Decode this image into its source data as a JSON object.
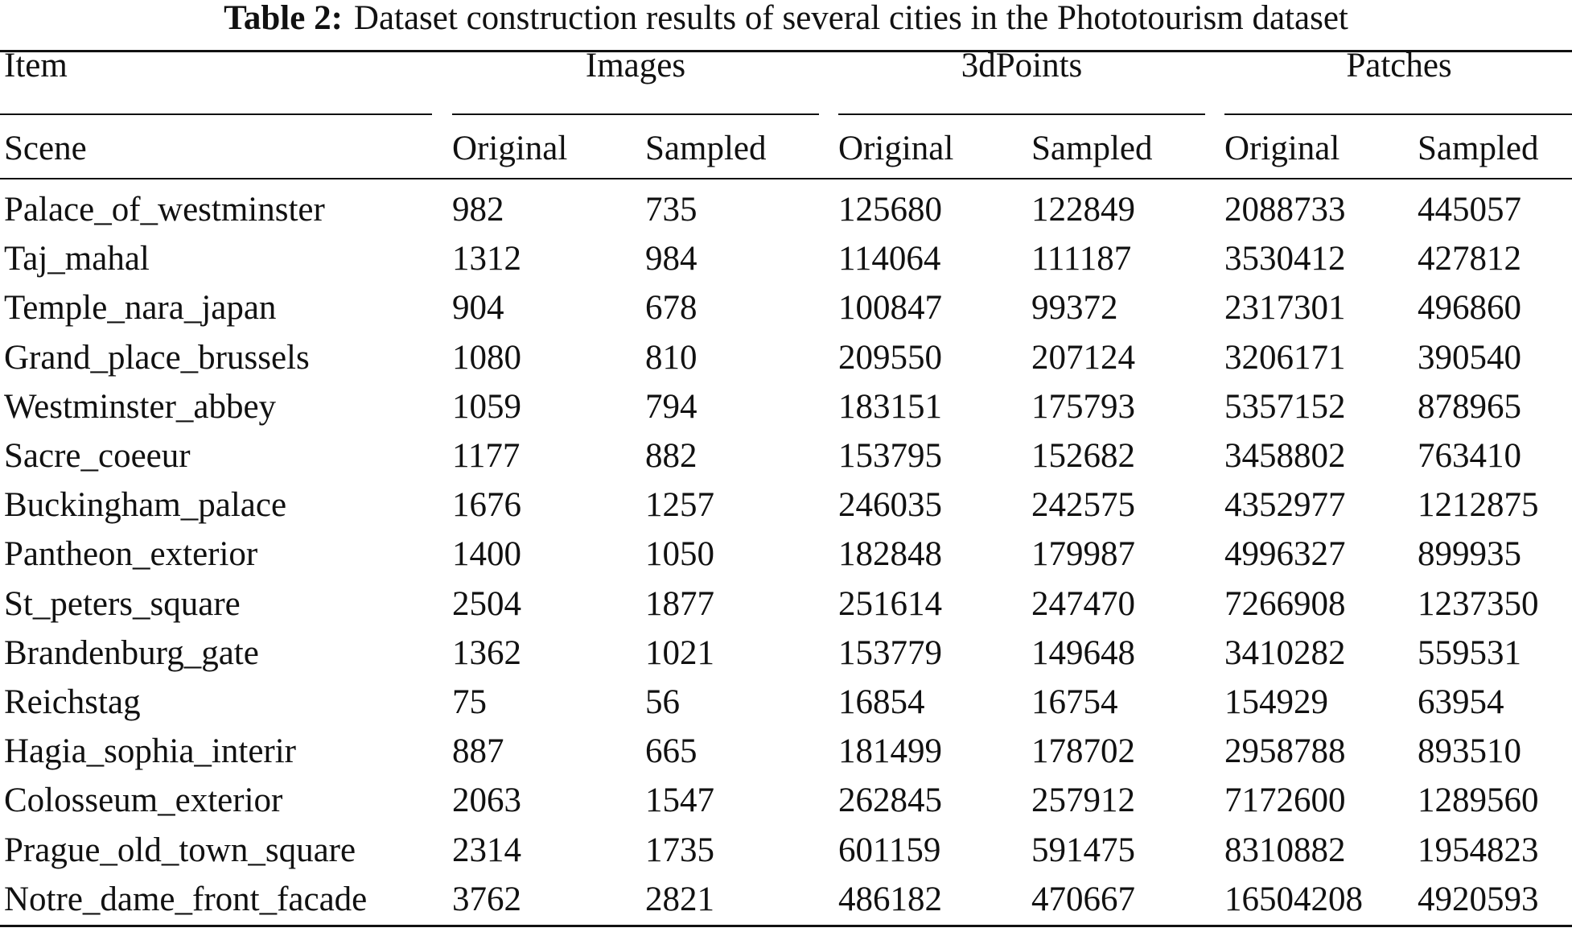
{
  "caption": {
    "label": "Table 2:",
    "text": "Dataset construction results of several cities in the Phototourism dataset"
  },
  "header": {
    "item": "Item",
    "scene": "Scene",
    "groups": [
      "Images",
      "3dPoints",
      "Patches"
    ],
    "subcolumns": [
      "Original",
      "Sampled",
      "Original",
      "Sampled",
      "Original",
      "Sampled"
    ]
  },
  "rows": [
    [
      "Palace_of_westminster",
      "982",
      "735",
      "125680",
      "122849",
      "2088733",
      "445057"
    ],
    [
      "Taj_mahal",
      "1312",
      "984",
      "114064",
      "111187",
      "3530412",
      "427812"
    ],
    [
      "Temple_nara_japan",
      "904",
      "678",
      "100847",
      "99372",
      "2317301",
      "496860"
    ],
    [
      "Grand_place_brussels",
      "1080",
      "810",
      "209550",
      "207124",
      "3206171",
      "390540"
    ],
    [
      "Westminster_abbey",
      "1059",
      "794",
      "183151",
      "175793",
      "5357152",
      "878965"
    ],
    [
      "Sacre_coeeur",
      "1177",
      "882",
      "153795",
      "152682",
      "3458802",
      "763410"
    ],
    [
      "Buckingham_palace",
      "1676",
      "1257",
      "246035",
      "242575",
      "4352977",
      "1212875"
    ],
    [
      "Pantheon_exterior",
      "1400",
      "1050",
      "182848",
      "179987",
      "4996327",
      "899935"
    ],
    [
      "St_peters_square",
      "2504",
      "1877",
      "251614",
      "247470",
      "7266908",
      "1237350"
    ],
    [
      "Brandenburg_gate",
      "1362",
      "1021",
      "153779",
      "149648",
      "3410282",
      "559531"
    ],
    [
      "Reichstag",
      "75",
      "56",
      "16854",
      "16754",
      "154929",
      "63954"
    ],
    [
      "Hagia_sophia_interir",
      "887",
      "665",
      "181499",
      "178702",
      "2958788",
      "893510"
    ],
    [
      "Colosseum_exterior",
      "2063",
      "1547",
      "262845",
      "257912",
      "7172600",
      "1289560"
    ],
    [
      "Prague_old_town_square",
      "2314",
      "1735",
      "601159",
      "591475",
      "8310882",
      "1954823"
    ],
    [
      "Notre_dame_front_facade",
      "3762",
      "2821",
      "486182",
      "470667",
      "16504208",
      "4920593"
    ]
  ]
}
